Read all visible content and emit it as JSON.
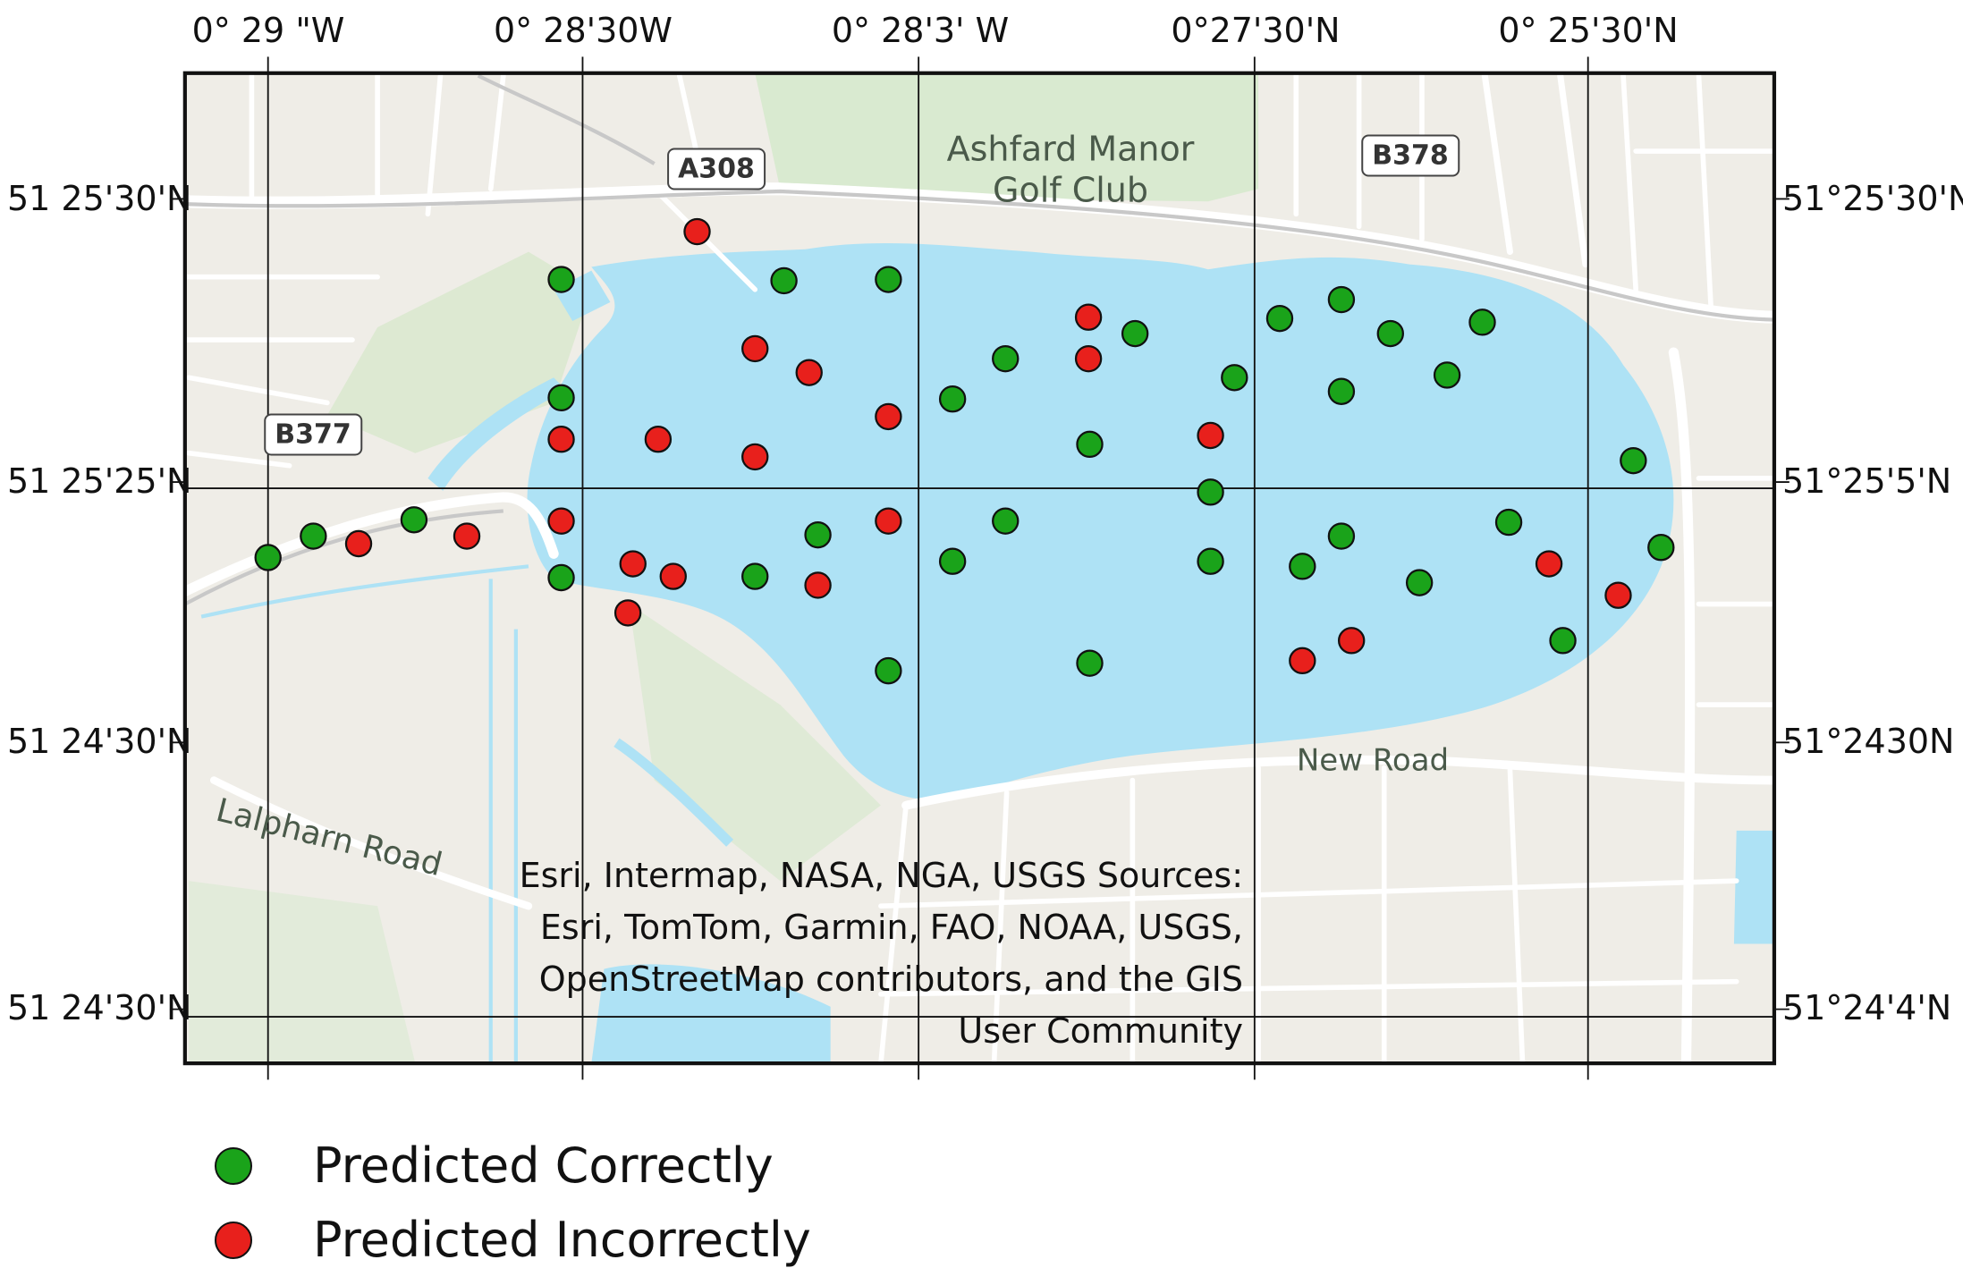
{
  "top_ticks": [
    "0° 29 \"W",
    "0° 28'30W",
    "0° 28'3' W",
    "0°27'30'N",
    "0° 25'30'N"
  ],
  "left_ticks": [
    "51 25'30'N",
    "51 25'25'N",
    "51 24'30'N",
    "51 24'30'N"
  ],
  "right_ticks": [
    "51°25'30'N",
    "51°25'5'N",
    "51°2430N",
    "51°24'4'N"
  ],
  "road_shields": [
    "A308",
    "B378",
    "B377"
  ],
  "place_labels": {
    "golf_club_line1": "Ashfard Manor",
    "golf_club_line2": "Golf Club",
    "new_road": "New Road",
    "lalpharn_road": "Lalpharn Road"
  },
  "attribution": {
    "line1": "Esri, Intermap, NASA, NGA, USGS   Sources:",
    "line2": "Esri, TomTom, Garmin, FAO, NOAA, USGS,",
    "line3": "OpenStreetMap contributors, and the GIS",
    "line4": "User Community"
  },
  "legend": {
    "correct_label": "Predicted Correctly",
    "incorrect_label": "Predicted Incorrectly"
  },
  "colors": {
    "correct": "#1aa31a",
    "incorrect": "#e8201c",
    "water": "#aee2f5",
    "land": "#efede7",
    "park": "#d9ead0",
    "road": "#ffffff"
  },
  "points": {
    "correct": [
      [
        213,
        443
      ],
      [
        249,
        426
      ],
      [
        329,
        413
      ],
      [
        446,
        222
      ],
      [
        446,
        316
      ],
      [
        446,
        459
      ],
      [
        623,
        223
      ],
      [
        706,
        222
      ],
      [
        650,
        425
      ],
      [
        600,
        458
      ],
      [
        706,
        533
      ],
      [
        757,
        317
      ],
      [
        799,
        285
      ],
      [
        757,
        446
      ],
      [
        799,
        414
      ],
      [
        866,
        353
      ],
      [
        902,
        265
      ],
      [
        866,
        527
      ],
      [
        981,
        300
      ],
      [
        962,
        391
      ],
      [
        962,
        446
      ],
      [
        1017,
        253
      ],
      [
        1066,
        238
      ],
      [
        1105,
        265
      ],
      [
        1150,
        298
      ],
      [
        1066,
        311
      ],
      [
        1178,
        256
      ],
      [
        1066,
        426
      ],
      [
        1035,
        450
      ],
      [
        1128,
        463
      ],
      [
        1199,
        415
      ],
      [
        1298,
        366
      ],
      [
        1320,
        435
      ],
      [
        1242,
        509
      ]
    ],
    "incorrect": [
      [
        285,
        432
      ],
      [
        371,
        426
      ],
      [
        446,
        349
      ],
      [
        446,
        414
      ],
      [
        554,
        184
      ],
      [
        523,
        349
      ],
      [
        600,
        277
      ],
      [
        643,
        296
      ],
      [
        600,
        363
      ],
      [
        503,
        448
      ],
      [
        535,
        458
      ],
      [
        499,
        487
      ],
      [
        650,
        465
      ],
      [
        706,
        331
      ],
      [
        706,
        414
      ],
      [
        865,
        252
      ],
      [
        865,
        285
      ],
      [
        962,
        346
      ],
      [
        1035,
        525
      ],
      [
        1074,
        509
      ],
      [
        1231,
        448
      ],
      [
        1286,
        473
      ]
    ]
  }
}
